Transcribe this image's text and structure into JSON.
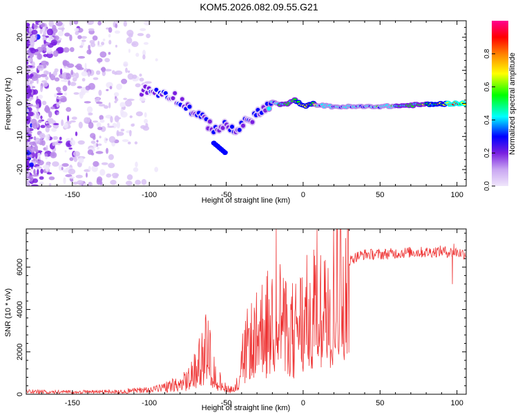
{
  "title": "KOM5.2026.082.09.55.G21",
  "chart_data": [
    {
      "type": "heatmap",
      "name": "spectrogram",
      "xlabel": "Height of straight line (km)",
      "ylabel": "Frequency (Hz)",
      "xlim": [
        -180,
        106
      ],
      "ylim": [
        -25,
        25
      ],
      "xticks": [
        -150,
        -100,
        -50,
        0,
        50,
        100
      ],
      "yticks": [
        -20,
        -10,
        0,
        10,
        20
      ],
      "colorbar": {
        "label": "Normalized spectral amplitude",
        "range": [
          0,
          1
        ],
        "ticks": [
          "0.0",
          "0.2",
          "0.4",
          "0.6",
          "0.8"
        ],
        "colors": [
          "#e6d9f7",
          "#8a2be2",
          "#0000ff",
          "#00ffff",
          "#00ff00",
          "#ffff00",
          "#ff8000",
          "#ff0000",
          "#ff00a0"
        ]
      },
      "ridge": {
        "x": [
          -105,
          -95,
          -85,
          -75,
          -65,
          -58,
          -50,
          -45,
          -40,
          -35,
          -30,
          -25,
          -20,
          -15,
          -10,
          -5,
          0,
          5,
          10,
          20,
          40,
          60,
          80,
          100,
          106
        ],
        "f": [
          4,
          3.5,
          2.5,
          -1,
          -5,
          -7.5,
          -7,
          -8,
          -7,
          -5,
          -3,
          -2,
          0.5,
          -0.5,
          0,
          1,
          -1,
          0,
          -0.5,
          -1,
          -1,
          -0.8,
          -0.3,
          0,
          0
        ],
        "amp": [
          0.35,
          0.4,
          0.38,
          0.4,
          0.45,
          0.42,
          0.4,
          0.45,
          0.45,
          0.4,
          0.42,
          0.45,
          0.55,
          0.6,
          0.6,
          0.7,
          0.75,
          0.8,
          0.55,
          0.55,
          0.55,
          0.6,
          0.7,
          0.85,
          0.9
        ]
      }
    },
    {
      "type": "line",
      "name": "snr",
      "xlabel": "Height of straight line (km)",
      "ylabel": "SNR (10 * v/v)",
      "xlim": [
        -180,
        106
      ],
      "ylim": [
        0,
        7800
      ],
      "xticks": [
        -150,
        -100,
        -50,
        0,
        50,
        100
      ],
      "yticks": [
        0,
        2000,
        4000,
        6000
      ],
      "color": "#ee3333",
      "series": [
        {
          "name": "SNR",
          "x": [
            -180,
            -150,
            -120,
            -100,
            -90,
            -80,
            -75,
            -70,
            -65,
            -62,
            -60,
            -55,
            -50,
            -45,
            -42,
            -40,
            -35,
            -30,
            -25,
            -20,
            -18,
            -15,
            -10,
            -5,
            0,
            5,
            10,
            15,
            20,
            25,
            30,
            35,
            40,
            50,
            60,
            70,
            80,
            90,
            95,
            100,
            106
          ],
          "y": [
            150,
            120,
            150,
            250,
            350,
            500,
            700,
            1200,
            2000,
            2600,
            1500,
            700,
            300,
            250,
            600,
            1800,
            2500,
            2800,
            3400,
            3600,
            5000,
            3800,
            3000,
            3200,
            3600,
            4000,
            4600,
            5200,
            5600,
            6000,
            6300,
            6500,
            6600,
            6600,
            6650,
            6700,
            6700,
            6750,
            6700,
            6700,
            6600
          ]
        }
      ],
      "noise": {
        "spikes": [
          {
            "x": -17.5,
            "y": 7800
          },
          {
            "x": 98,
            "y": 7100
          },
          {
            "x": 97,
            "y": 5200
          }
        ]
      }
    }
  ]
}
